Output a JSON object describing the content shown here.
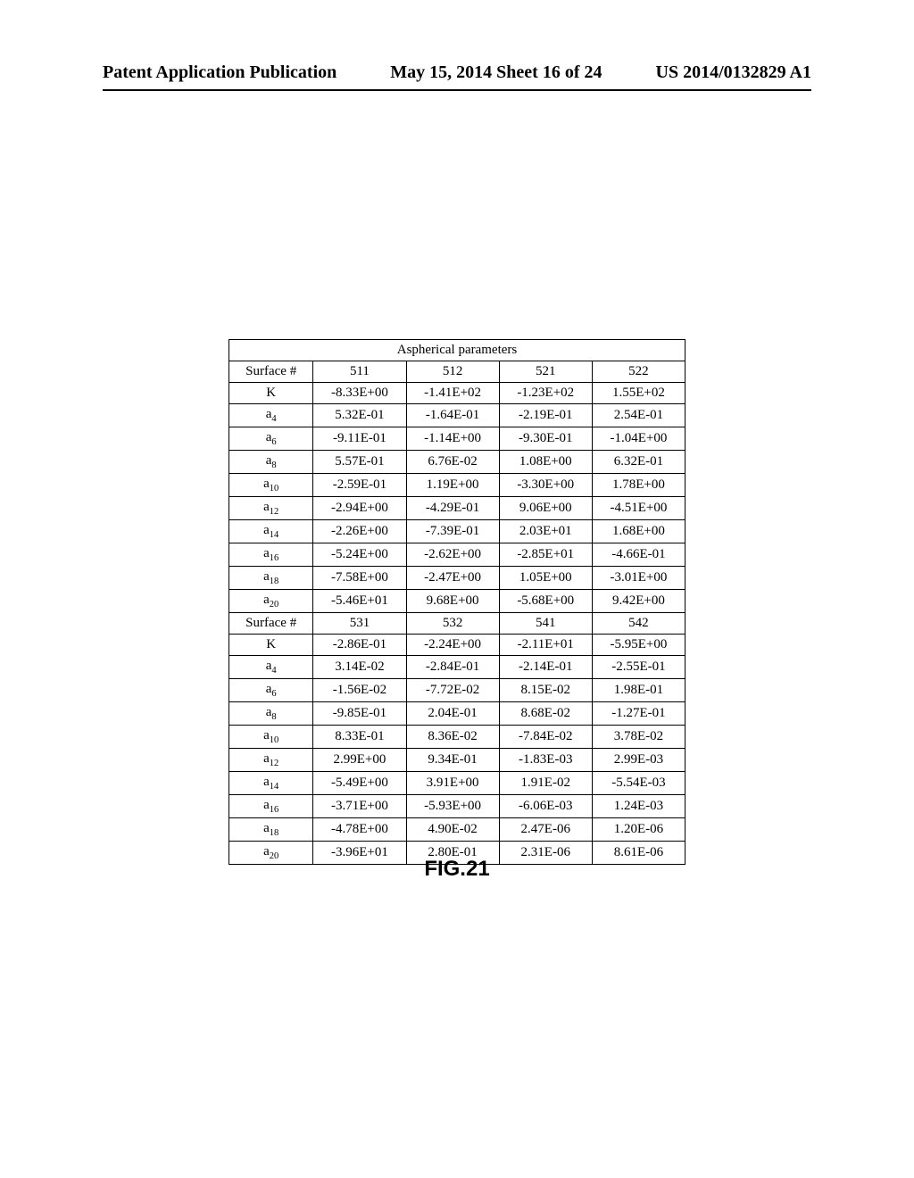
{
  "header": {
    "left": "Patent Application Publication",
    "center": "May 15, 2014  Sheet 16 of 24",
    "right": "US 2014/0132829 A1"
  },
  "table": {
    "title": "Aspherical parameters",
    "surface_label": "Surface #",
    "row_labels": [
      "K",
      "a4",
      "a6",
      "a8",
      "a10",
      "a12",
      "a14",
      "a16",
      "a18",
      "a20"
    ],
    "row_label_subscripts": [
      null,
      "4",
      "6",
      "8",
      "10",
      "12",
      "14",
      "16",
      "18",
      "20"
    ],
    "row_label_bases": [
      "K",
      "a",
      "a",
      "a",
      "a",
      "a",
      "a",
      "a",
      "a",
      "a"
    ],
    "block1": {
      "surfaces": [
        "511",
        "512",
        "521",
        "522"
      ],
      "rows": [
        [
          "-8.33E+00",
          "-1.41E+02",
          "-1.23E+02",
          "1.55E+02"
        ],
        [
          "5.32E-01",
          "-1.64E-01",
          "-2.19E-01",
          "2.54E-01"
        ],
        [
          "-9.11E-01",
          "-1.14E+00",
          "-9.30E-01",
          "-1.04E+00"
        ],
        [
          "5.57E-01",
          "6.76E-02",
          "1.08E+00",
          "6.32E-01"
        ],
        [
          "-2.59E-01",
          "1.19E+00",
          "-3.30E+00",
          "1.78E+00"
        ],
        [
          "-2.94E+00",
          "-4.29E-01",
          "9.06E+00",
          "-4.51E+00"
        ],
        [
          "-2.26E+00",
          "-7.39E-01",
          "2.03E+01",
          "1.68E+00"
        ],
        [
          "-5.24E+00",
          "-2.62E+00",
          "-2.85E+01",
          "-4.66E-01"
        ],
        [
          "-7.58E+00",
          "-2.47E+00",
          "1.05E+00",
          "-3.01E+00"
        ],
        [
          "-5.46E+01",
          "9.68E+00",
          "-5.68E+00",
          "9.42E+00"
        ]
      ]
    },
    "block2": {
      "surfaces": [
        "531",
        "532",
        "541",
        "542"
      ],
      "rows": [
        [
          "-2.86E-01",
          "-2.24E+00",
          "-2.11E+01",
          "-5.95E+00"
        ],
        [
          "3.14E-02",
          "-2.84E-01",
          "-2.14E-01",
          "-2.55E-01"
        ],
        [
          "-1.56E-02",
          "-7.72E-02",
          "8.15E-02",
          "1.98E-01"
        ],
        [
          "-9.85E-01",
          "2.04E-01",
          "8.68E-02",
          "-1.27E-01"
        ],
        [
          "8.33E-01",
          "8.36E-02",
          "-7.84E-02",
          "3.78E-02"
        ],
        [
          "2.99E+00",
          "9.34E-01",
          "-1.83E-03",
          "2.99E-03"
        ],
        [
          "-5.49E+00",
          "3.91E+00",
          "1.91E-02",
          "-5.54E-03"
        ],
        [
          "-3.71E+00",
          "-5.93E+00",
          "-6.06E-03",
          "1.24E-03"
        ],
        [
          "-4.78E+00",
          "4.90E-02",
          "2.47E-06",
          "1.20E-06"
        ],
        [
          "-3.96E+01",
          "2.80E-01",
          "2.31E-06",
          "8.61E-06"
        ]
      ]
    }
  },
  "figure_label": "FIG.21"
}
